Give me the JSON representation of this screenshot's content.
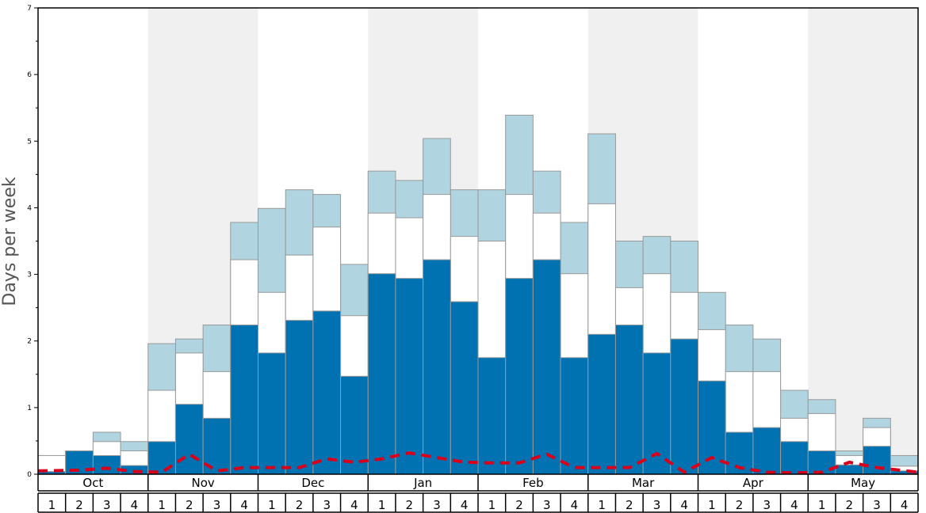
{
  "chart_data": {
    "type": "bar",
    "ylabel": "Days per week",
    "ylim": [
      0,
      7
    ],
    "yticks": [
      "0",
      "1",
      "2",
      "3",
      "4",
      "5",
      "6",
      "7"
    ],
    "months": [
      "Oct",
      "Nov",
      "Dec",
      "Jan",
      "Feb",
      "Mar",
      "Apr",
      "May"
    ],
    "week_labels": [
      "1",
      "2",
      "3",
      "4"
    ],
    "categories": [
      "Oct 1",
      "Oct 2",
      "Oct 3",
      "Oct 4",
      "Nov 1",
      "Nov 2",
      "Nov 3",
      "Nov 4",
      "Dec 1",
      "Dec 2",
      "Dec 3",
      "Dec 4",
      "Jan 1",
      "Jan 2",
      "Jan 3",
      "Jan 4",
      "Feb 1",
      "Feb 2",
      "Feb 3",
      "Feb 4",
      "Mar 1",
      "Mar 2",
      "Mar 3",
      "Mar 4",
      "Apr 1",
      "Apr 2",
      "Apr 3",
      "Apr 4",
      "May 1",
      "May 2",
      "May 3",
      "May 4"
    ],
    "series": [
      {
        "color": "#0072b2",
        "values": [
          0.04,
          0.35,
          0.28,
          0.13,
          0.49,
          1.05,
          0.84,
          2.24,
          1.82,
          2.31,
          2.45,
          1.47,
          3.01,
          2.94,
          3.22,
          2.59,
          1.75,
          2.94,
          3.22,
          1.75,
          2.1,
          2.24,
          1.82,
          2.03,
          1.4,
          0.63,
          0.7,
          0.49,
          0.35,
          0.14,
          0.42,
          0.05
        ]
      },
      {
        "color": "#ffffff",
        "values": [
          0.28,
          0.35,
          0.49,
          0.35,
          1.26,
          1.82,
          1.54,
          3.22,
          2.73,
          3.29,
          3.71,
          2.38,
          3.92,
          3.85,
          4.2,
          3.57,
          3.5,
          4.2,
          3.92,
          3.01,
          4.06,
          2.8,
          3.01,
          2.73,
          2.17,
          1.54,
          1.54,
          0.84,
          0.91,
          0.28,
          0.7,
          0.12
        ]
      },
      {
        "color": "#b0d4e0",
        "values": [
          0.28,
          0.35,
          0.63,
          0.49,
          1.96,
          2.03,
          2.24,
          3.78,
          3.99,
          4.27,
          4.2,
          3.15,
          4.55,
          4.41,
          5.04,
          4.27,
          4.27,
          5.39,
          4.55,
          3.78,
          5.11,
          3.5,
          3.57,
          3.5,
          2.73,
          2.24,
          2.03,
          1.26,
          1.12,
          0.35,
          0.84,
          0.28
        ]
      }
    ],
    "dashed_line": {
      "color": "#d9001b",
      "values": [
        0.05,
        0.06,
        0.09,
        0.04,
        0.03,
        0.3,
        0.05,
        0.1,
        0.1,
        0.1,
        0.23,
        0.18,
        0.23,
        0.32,
        0.25,
        0.18,
        0.17,
        0.17,
        0.3,
        0.1,
        0.1,
        0.1,
        0.31,
        0.03,
        0.25,
        0.1,
        0.03,
        0.02,
        0.03,
        0.18,
        0.1,
        0.03
      ]
    },
    "band_colors": [
      "#ffffff",
      "#f0f0f0"
    ]
  }
}
